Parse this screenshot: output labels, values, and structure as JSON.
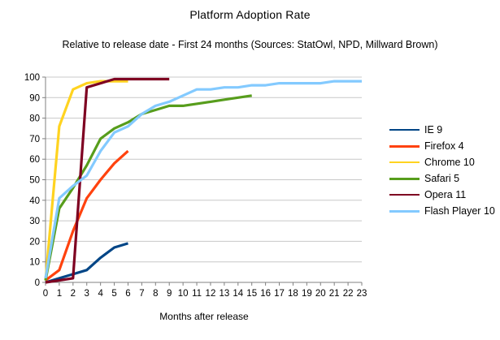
{
  "chart": {
    "title": "Platform Adoption Rate",
    "subtitle": "Relative to release date - First 24 months (Sources: StatOwl, NPD, Millward Brown)",
    "x_axis_title": "Months after release"
  },
  "chart_data": {
    "type": "line",
    "title": "Platform Adoption Rate",
    "subtitle": "Relative to release date - First 24 months (Sources: StatOwl, NPD, Millward Brown)",
    "xlabel": "Months after release",
    "ylabel": "",
    "xlim": [
      0,
      23
    ],
    "ylim": [
      0,
      100
    ],
    "x_ticks": [
      0,
      1,
      2,
      3,
      4,
      5,
      6,
      7,
      8,
      9,
      10,
      11,
      12,
      13,
      14,
      15,
      16,
      17,
      18,
      19,
      20,
      21,
      22,
      23
    ],
    "y_ticks": [
      0,
      10,
      20,
      30,
      40,
      50,
      60,
      70,
      80,
      90,
      100
    ],
    "grid": "horizontal",
    "legend_position": "right",
    "series": [
      {
        "name": "IE 9",
        "color": "#004586",
        "legend_weight": 2,
        "x": [
          0,
          1,
          2,
          3,
          4,
          5,
          6
        ],
        "values": [
          0,
          2,
          4,
          6,
          12,
          17,
          19
        ]
      },
      {
        "name": "Firefox 4",
        "color": "#FF420E",
        "legend_weight": 3,
        "x": [
          0,
          1,
          2,
          3,
          4,
          5,
          6
        ],
        "values": [
          1,
          6,
          25,
          41,
          50,
          58,
          64
        ]
      },
      {
        "name": "Chrome 10",
        "color": "#FFD320",
        "legend_weight": 2.5,
        "x": [
          0,
          1,
          2,
          3,
          4,
          5,
          6
        ],
        "values": [
          1,
          76,
          94,
          97,
          98,
          98,
          98
        ]
      },
      {
        "name": "Safari 5",
        "color": "#579D1C",
        "legend_weight": 3,
        "x": [
          0,
          1,
          2,
          3,
          4,
          5,
          6,
          7,
          8,
          9,
          10,
          11,
          12,
          13,
          14,
          15
        ],
        "values": [
          1,
          36,
          46,
          57,
          70,
          75,
          78,
          82,
          84,
          86,
          86,
          87,
          88,
          89,
          90,
          91
        ]
      },
      {
        "name": "Opera 11",
        "color": "#7E0021",
        "legend_weight": 2,
        "x": [
          0,
          1,
          2,
          3,
          4,
          5,
          6,
          7,
          8,
          9
        ],
        "values": [
          0,
          1,
          2,
          95,
          97,
          99,
          99,
          99,
          99,
          99
        ]
      },
      {
        "name": "Flash Player 10",
        "color": "#83CAFF",
        "legend_weight": 3,
        "x": [
          0,
          1,
          2,
          3,
          4,
          5,
          6,
          7,
          8,
          9,
          10,
          11,
          12,
          13,
          14,
          15,
          16,
          17,
          18,
          19,
          20,
          21,
          22,
          23
        ],
        "values": [
          2,
          41,
          47,
          52,
          64,
          73,
          76,
          82,
          86,
          88,
          91,
          94,
          94,
          95,
          95,
          96,
          96,
          97,
          97,
          97,
          97,
          98,
          98,
          98
        ]
      }
    ]
  },
  "colors": {
    "background": "#FFFFFF",
    "gridline": "#C8C8C8",
    "axis": "#808080",
    "text": "#000000"
  }
}
